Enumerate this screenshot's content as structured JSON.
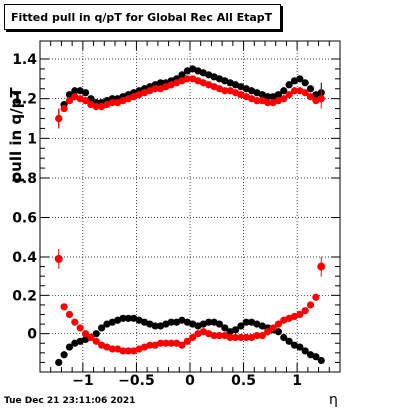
{
  "title": "Fitted pull in q/pT for Global Rec All EtapT",
  "timestamp": "Tue Dec 21 23:11:06 2021",
  "chart_data": {
    "type": "scatter",
    "title": "Fitted pull in q/pT for Global Rec All EtapT",
    "xlabel": "η",
    "ylabel": "pull in q/pT",
    "xlim": [
      -1.4,
      1.4
    ],
    "grid": true,
    "x_ticks": [
      {
        "value": -1,
        "label": "−1"
      },
      {
        "value": -0.5,
        "label": "−0.5"
      },
      {
        "value": 0,
        "label": "0"
      },
      {
        "value": 0.5,
        "label": "0.5"
      },
      {
        "value": 1,
        "label": "1"
      }
    ],
    "y_ticks": [
      {
        "value": 0,
        "label": "0"
      },
      {
        "value": 0.2,
        "label": "0.2"
      },
      {
        "value": 0.4,
        "label": "0.4"
      },
      {
        "value": 0.6,
        "label": "0.6"
      },
      {
        "value": 0.8,
        "label": "0.8"
      },
      {
        "value": 1,
        "label": "1"
      },
      {
        "value": 1.2,
        "label": "1.2"
      },
      {
        "value": 1.4,
        "label": "1.4"
      }
    ],
    "series": [
      {
        "color": "#000000",
        "role": "width",
        "x": [
          -1.225,
          -1.175,
          -1.125,
          -1.075,
          -1.025,
          -0.975,
          -0.925,
          -0.875,
          -0.825,
          -0.775,
          -0.725,
          -0.675,
          -0.625,
          -0.575,
          -0.525,
          -0.475,
          -0.425,
          -0.375,
          -0.325,
          -0.275,
          -0.225,
          -0.175,
          -0.125,
          -0.075,
          -0.025,
          0.025,
          0.075,
          0.125,
          0.175,
          0.225,
          0.275,
          0.325,
          0.375,
          0.425,
          0.475,
          0.525,
          0.575,
          0.625,
          0.675,
          0.725,
          0.775,
          0.825,
          0.875,
          0.925,
          0.975,
          1.025,
          1.075,
          1.125,
          1.175,
          1.225
        ],
        "y": [
          1.1,
          1.17,
          1.22,
          1.24,
          1.24,
          1.23,
          1.2,
          1.18,
          1.18,
          1.19,
          1.2,
          1.2,
          1.21,
          1.22,
          1.23,
          1.24,
          1.25,
          1.26,
          1.27,
          1.28,
          1.28,
          1.29,
          1.3,
          1.32,
          1.34,
          1.35,
          1.34,
          1.33,
          1.32,
          1.31,
          1.3,
          1.29,
          1.28,
          1.27,
          1.26,
          1.25,
          1.24,
          1.23,
          1.22,
          1.21,
          1.21,
          1.22,
          1.24,
          1.27,
          1.29,
          1.3,
          1.28,
          1.25,
          1.22,
          1.23
        ]
      },
      {
        "color": "#ff0000",
        "role": "width",
        "x": [
          -1.225,
          -1.175,
          -1.125,
          -1.075,
          -1.025,
          -0.975,
          -0.925,
          -0.875,
          -0.825,
          -0.775,
          -0.725,
          -0.675,
          -0.625,
          -0.575,
          -0.525,
          -0.475,
          -0.425,
          -0.375,
          -0.325,
          -0.275,
          -0.225,
          -0.175,
          -0.125,
          -0.075,
          -0.025,
          0.025,
          0.075,
          0.125,
          0.175,
          0.225,
          0.275,
          0.325,
          0.375,
          0.425,
          0.475,
          0.525,
          0.575,
          0.625,
          0.675,
          0.725,
          0.775,
          0.825,
          0.875,
          0.925,
          0.975,
          1.025,
          1.075,
          1.125,
          1.175,
          1.225
        ],
        "y": [
          1.1,
          1.15,
          1.19,
          1.21,
          1.2,
          1.19,
          1.17,
          1.16,
          1.16,
          1.17,
          1.18,
          1.18,
          1.19,
          1.2,
          1.21,
          1.22,
          1.23,
          1.24,
          1.25,
          1.25,
          1.26,
          1.27,
          1.28,
          1.29,
          1.3,
          1.3,
          1.29,
          1.28,
          1.27,
          1.26,
          1.25,
          1.24,
          1.24,
          1.23,
          1.22,
          1.21,
          1.2,
          1.19,
          1.19,
          1.18,
          1.18,
          1.19,
          1.2,
          1.22,
          1.24,
          1.24,
          1.23,
          1.21,
          1.19,
          1.2
        ]
      },
      {
        "color": "#000000",
        "role": "mean",
        "x": [
          -1.225,
          -1.175,
          -1.125,
          -1.075,
          -1.025,
          -0.975,
          -0.925,
          -0.875,
          -0.825,
          -0.775,
          -0.725,
          -0.675,
          -0.625,
          -0.575,
          -0.525,
          -0.475,
          -0.425,
          -0.375,
          -0.325,
          -0.275,
          -0.225,
          -0.175,
          -0.125,
          -0.075,
          -0.025,
          0.025,
          0.075,
          0.125,
          0.175,
          0.225,
          0.275,
          0.325,
          0.375,
          0.425,
          0.475,
          0.525,
          0.575,
          0.625,
          0.675,
          0.725,
          0.775,
          0.825,
          0.875,
          0.925,
          0.975,
          1.025,
          1.075,
          1.125,
          1.175,
          1.225
        ],
        "y": [
          -0.15,
          -0.11,
          -0.07,
          -0.05,
          -0.04,
          -0.03,
          -0.02,
          0.0,
          0.03,
          0.05,
          0.06,
          0.07,
          0.08,
          0.08,
          0.08,
          0.07,
          0.06,
          0.05,
          0.04,
          0.04,
          0.05,
          0.06,
          0.06,
          0.07,
          0.06,
          0.05,
          0.04,
          0.05,
          0.06,
          0.06,
          0.05,
          0.03,
          0.01,
          0.02,
          0.04,
          0.06,
          0.06,
          0.05,
          0.04,
          0.03,
          0.02,
          0.01,
          -0.02,
          -0.04,
          -0.06,
          -0.07,
          -0.09,
          -0.11,
          -0.12,
          -0.14
        ]
      },
      {
        "color": "#ff0000",
        "role": "mean",
        "x": [
          -1.225,
          -1.175,
          -1.125,
          -1.075,
          -1.025,
          -0.975,
          -0.925,
          -0.875,
          -0.825,
          -0.775,
          -0.725,
          -0.675,
          -0.625,
          -0.575,
          -0.525,
          -0.475,
          -0.425,
          -0.375,
          -0.325,
          -0.275,
          -0.225,
          -0.175,
          -0.125,
          -0.075,
          -0.025,
          0.025,
          0.075,
          0.125,
          0.175,
          0.225,
          0.275,
          0.325,
          0.375,
          0.425,
          0.475,
          0.525,
          0.575,
          0.625,
          0.675,
          0.725,
          0.775,
          0.825,
          0.875,
          0.925,
          0.975,
          1.025,
          1.075,
          1.125,
          1.175,
          1.225
        ],
        "y": [
          0.39,
          0.14,
          0.1,
          0.06,
          0.03,
          0.0,
          -0.02,
          -0.04,
          -0.06,
          -0.07,
          -0.08,
          -0.08,
          -0.09,
          -0.09,
          -0.09,
          -0.08,
          -0.07,
          -0.06,
          -0.06,
          -0.05,
          -0.05,
          -0.05,
          -0.05,
          -0.06,
          -0.04,
          -0.02,
          0.0,
          0.01,
          0.0,
          -0.01,
          -0.01,
          -0.01,
          -0.02,
          -0.02,
          -0.02,
          -0.02,
          -0.02,
          -0.01,
          -0.01,
          0.01,
          0.03,
          0.05,
          0.07,
          0.08,
          0.09,
          0.1,
          0.12,
          0.15,
          0.19,
          0.35
        ]
      }
    ]
  }
}
